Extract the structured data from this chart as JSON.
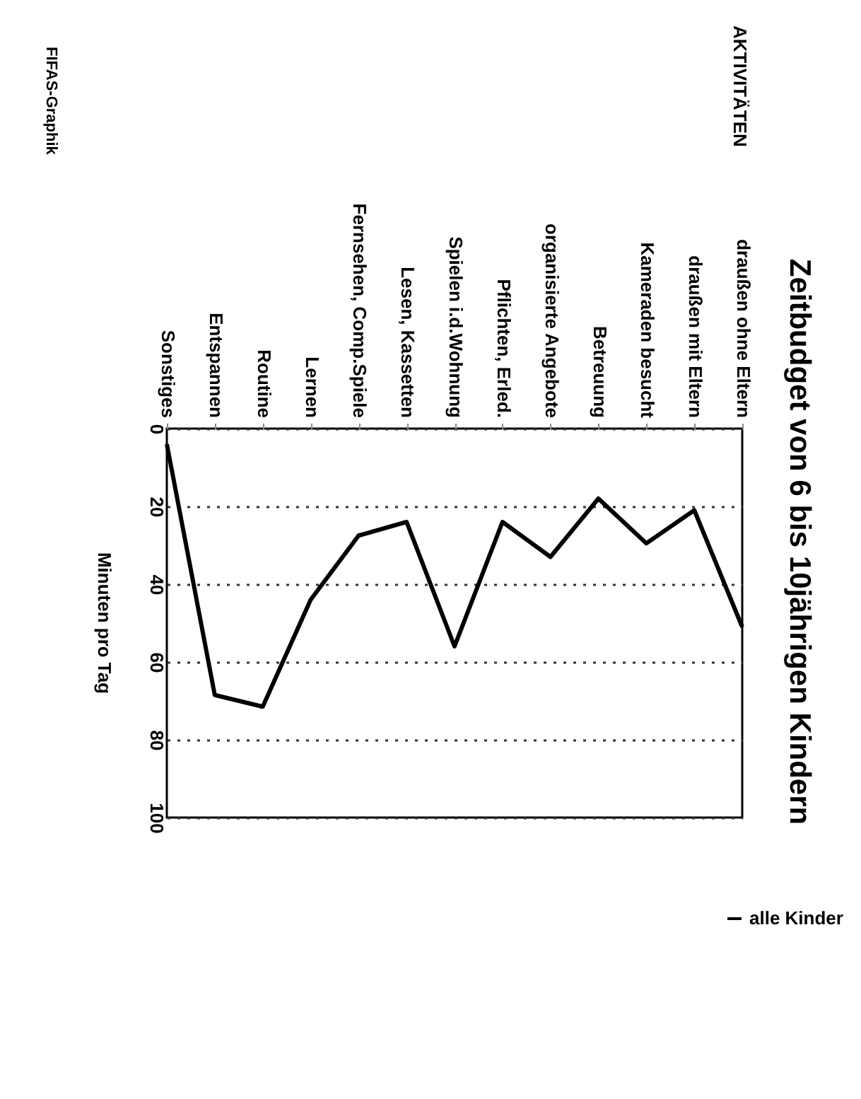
{
  "chart_data": {
    "type": "line",
    "title": "Zeitbudget von 6 bis 10jährigen Kindern",
    "ylabel": "Minuten pro Tag",
    "categories": [
      "Sonstiges",
      "Entspannen",
      "Routine",
      "Lernen",
      "Fernsehen, Comp.Spiele",
      "Lesen, Kassetten",
      "Spielen i.d.Wohnung",
      "Pflichten, Erled.",
      "organisierte Angebote",
      "Betreuung",
      "Kameraden besucht",
      "draußen mit Eltern",
      "draußen ohne Eltern"
    ],
    "series": [
      {
        "name": "alle Kinder",
        "color": "#000000",
        "values": [
          4,
          68.5,
          71.5,
          44,
          27.5,
          24,
          56,
          24,
          33,
          18,
          29.5,
          21,
          51
        ]
      }
    ],
    "ylim": [
      100,
      0
    ],
    "yticks": [
      0,
      20,
      40,
      60,
      80,
      100
    ],
    "grid": "y",
    "legend": "right",
    "marker": "none",
    "line_style": "solid",
    "annotations": [
      "AKTIVITÄTEN",
      "FIFAS-Graphik"
    ]
  }
}
